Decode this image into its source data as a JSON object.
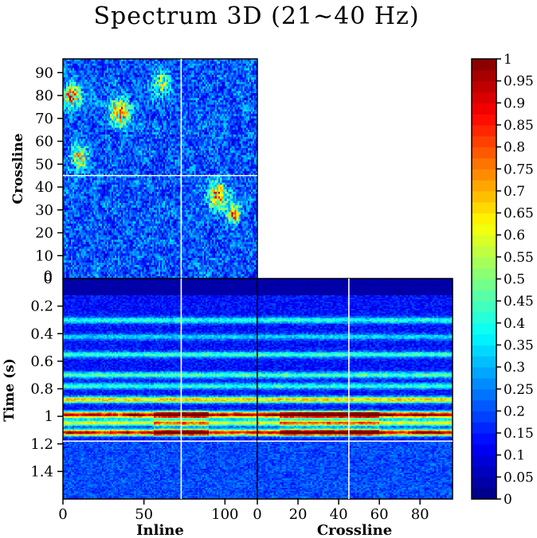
{
  "chart_data": {
    "type": "heatmap",
    "title": "Spectrum 3D (21~40 Hz)",
    "panels": {
      "top": {
        "name": "inline-crossline slice",
        "xlim": [
          0,
          120
        ],
        "ylim": [
          0,
          96
        ],
        "ylabel": "Crossline",
        "yticks": [
          10,
          20,
          30,
          40,
          50,
          60,
          70,
          80,
          90
        ],
        "slice_lines": {
          "inline": 73,
          "crossline": 45
        }
      },
      "front": {
        "name": "inline-time section",
        "xlim": [
          0,
          120
        ],
        "ylim": [
          0,
          1.6
        ],
        "xlabel": "Inline",
        "ylabel": "Time (s)",
        "xticks": [
          0,
          50,
          100
        ],
        "yticks": [
          0.2,
          0.4,
          0.6,
          0.8,
          1,
          1.2,
          1.4
        ],
        "slice_lines": {
          "inline": 73,
          "time": 1.18
        }
      },
      "side": {
        "name": "crossline-time section",
        "xlim": [
          0,
          96
        ],
        "ylim": [
          0,
          1.6
        ],
        "xlabel": "Crossline",
        "xticks": [
          0,
          20,
          40,
          60,
          80
        ],
        "slice_lines": {
          "crossline": 45,
          "time": 1.18
        }
      }
    },
    "corner_labels": {
      "top_zero": "0",
      "side_zero": "0"
    },
    "colorbar": {
      "colormap": "jet",
      "range": [
        0,
        1
      ],
      "ticks": [
        "0",
        "0.05",
        "0.1",
        "0.15",
        "0.2",
        "0.25",
        "0.3",
        "0.35",
        "0.4",
        "0.45",
        "0.5",
        "0.55",
        "0.6",
        "0.65",
        "0.7",
        "0.75",
        "0.8",
        "0.85",
        "0.9",
        "0.95",
        "1"
      ]
    },
    "time_bands": [
      {
        "t": 0.3,
        "amp": 0.28
      },
      {
        "t": 0.42,
        "amp": 0.2
      },
      {
        "t": 0.55,
        "amp": 0.3
      },
      {
        "t": 0.7,
        "amp": 0.32
      },
      {
        "t": 0.78,
        "amp": 0.28
      },
      {
        "t": 0.88,
        "amp": 0.55
      },
      {
        "t": 0.99,
        "amp": 0.9
      },
      {
        "t": 1.05,
        "amp": 0.5
      },
      {
        "t": 1.12,
        "amp": 0.85
      }
    ]
  }
}
